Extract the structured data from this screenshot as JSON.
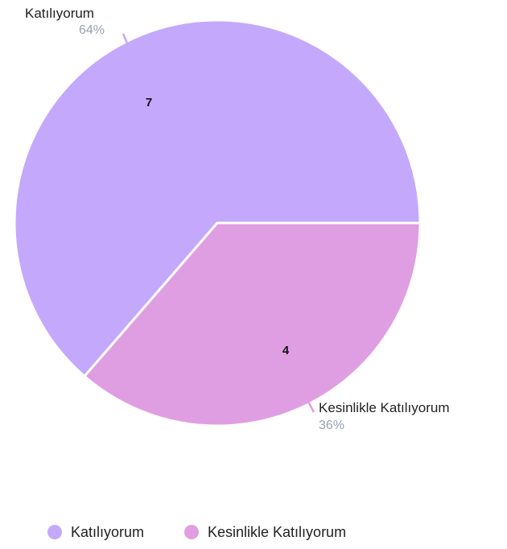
{
  "chart_data": {
    "type": "pie",
    "series": [
      {
        "name": "Katılıyorum",
        "value": 7,
        "percent_label": "64%",
        "color": "#c4a8fc"
      },
      {
        "name": "Kesinlikle Katılıyorum",
        "value": 4,
        "percent_label": "36%",
        "color": "#e09ee2"
      }
    ],
    "legend": {
      "position": "bottom-left",
      "items": [
        "Katılıyorum",
        "Kesinlikle Katılıyorum"
      ]
    }
  }
}
